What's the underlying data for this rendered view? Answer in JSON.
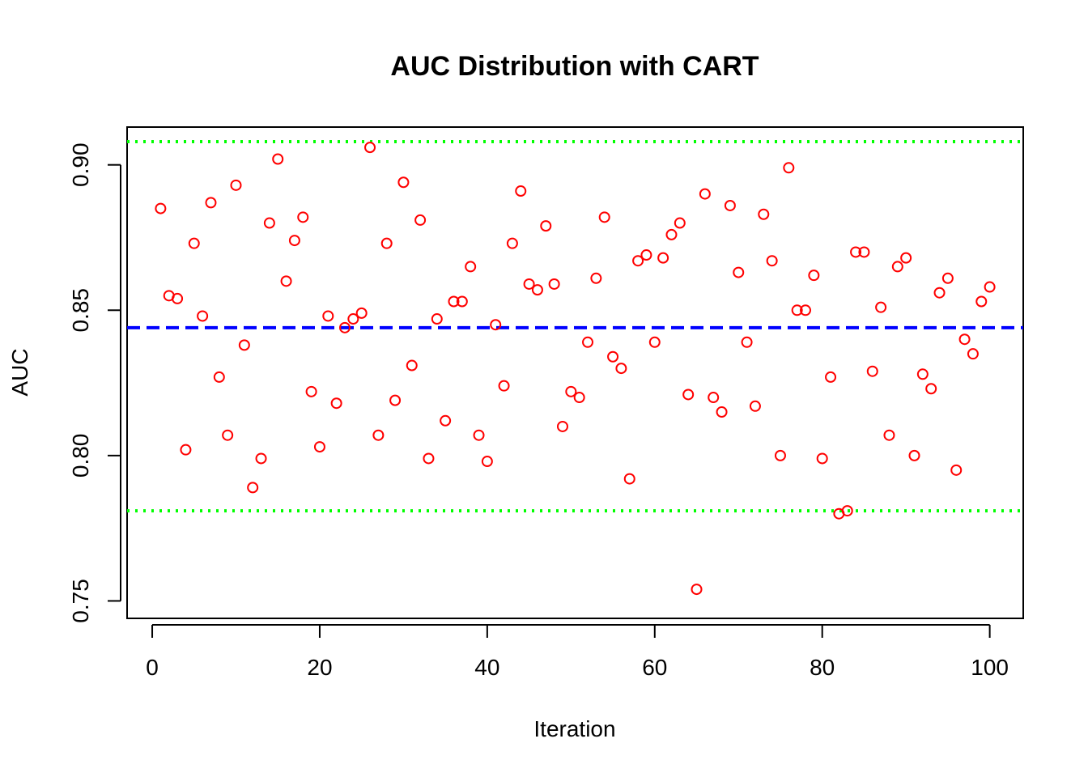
{
  "chart_data": {
    "type": "scatter",
    "title": "AUC Distribution with CART",
    "xlabel": "Iteration",
    "ylabel": "AUC",
    "xlim": [
      -3,
      104
    ],
    "ylim": [
      0.744,
      0.913
    ],
    "x_ticks": [
      0,
      20,
      40,
      60,
      80,
      100
    ],
    "x_tick_labels": [
      "0",
      "20",
      "40",
      "60",
      "80",
      "100"
    ],
    "y_ticks": [
      0.75,
      0.8,
      0.85,
      0.9
    ],
    "y_tick_labels": [
      "0.75",
      "0.80",
      "0.85",
      "0.90"
    ],
    "grid": false,
    "legend": "none",
    "series": [
      {
        "marker": "open-circle",
        "color": "#ff0000",
        "x": [
          1,
          2,
          3,
          4,
          5,
          6,
          7,
          8,
          9,
          10,
          11,
          12,
          13,
          14,
          15,
          16,
          17,
          18,
          19,
          20,
          21,
          22,
          23,
          24,
          25,
          26,
          27,
          28,
          29,
          30,
          31,
          32,
          33,
          34,
          35,
          36,
          37,
          38,
          39,
          40,
          41,
          42,
          43,
          44,
          45,
          46,
          47,
          48,
          49,
          50,
          51,
          52,
          53,
          54,
          55,
          56,
          57,
          58,
          59,
          60,
          61,
          62,
          63,
          64,
          65,
          66,
          67,
          68,
          69,
          70,
          71,
          72,
          73,
          74,
          75,
          76,
          77,
          78,
          79,
          80,
          81,
          82,
          83,
          84,
          85,
          86,
          87,
          88,
          89,
          90,
          91,
          92,
          93,
          94,
          95,
          96,
          97,
          98,
          99,
          100
        ],
        "y": [
          0.885,
          0.855,
          0.854,
          0.802,
          0.873,
          0.848,
          0.887,
          0.827,
          0.807,
          0.893,
          0.838,
          0.789,
          0.799,
          0.88,
          0.902,
          0.86,
          0.874,
          0.882,
          0.822,
          0.803,
          0.848,
          0.818,
          0.844,
          0.847,
          0.849,
          0.906,
          0.807,
          0.873,
          0.819,
          0.894,
          0.831,
          0.881,
          0.799,
          0.847,
          0.812,
          0.853,
          0.853,
          0.865,
          0.807,
          0.798,
          0.845,
          0.824,
          0.873,
          0.891,
          0.859,
          0.857,
          0.879,
          0.859,
          0.81,
          0.822,
          0.82,
          0.839,
          0.861,
          0.882,
          0.834,
          0.83,
          0.792,
          0.867,
          0.869,
          0.839,
          0.868,
          0.876,
          0.88,
          0.821,
          0.754,
          0.89,
          0.82,
          0.815,
          0.886,
          0.863,
          0.839,
          0.817,
          0.883,
          0.867,
          0.8,
          0.899,
          0.85,
          0.85,
          0.862,
          0.799,
          0.827,
          0.78,
          0.781,
          0.87,
          0.87,
          0.829,
          0.851,
          0.807,
          0.865,
          0.868,
          0.8,
          0.828,
          0.823,
          0.856,
          0.861,
          0.795,
          0.84,
          0.835,
          0.853,
          0.858
        ]
      }
    ],
    "reference_lines": [
      {
        "y": 0.844,
        "color": "#0000ff",
        "style": "dashed"
      },
      {
        "y": 0.908,
        "color": "#00ff00",
        "style": "dotted"
      },
      {
        "y": 0.781,
        "color": "#00ff00",
        "style": "dotted"
      }
    ]
  }
}
